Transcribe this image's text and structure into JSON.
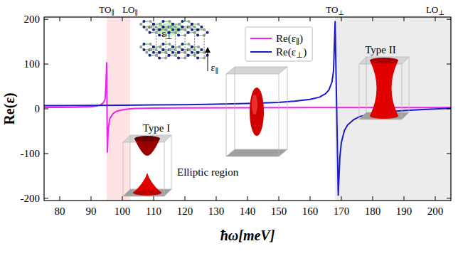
{
  "chart_data": {
    "type": "line",
    "x_label": "ħω[meV]",
    "y_label": "Re(ε)",
    "xlim": [
      75,
      205
    ],
    "ylim": [
      -205,
      205
    ],
    "xticks": [
      80,
      90,
      100,
      110,
      120,
      130,
      140,
      150,
      160,
      170,
      180,
      190,
      200
    ],
    "yticks": [
      -200,
      -100,
      0,
      100,
      200
    ],
    "grid": false,
    "legend": "top",
    "series": [
      {
        "name": "Re(ε∥)",
        "color": "#ee22ee",
        "line_style": "solid",
        "x": [
          75,
          80,
          85,
          90,
          92,
          93,
          94,
          94.5,
          94.8,
          95.0,
          95.2,
          95.5,
          96,
          97,
          98,
          100,
          102,
          104,
          110,
          120,
          140,
          160,
          180,
          205
        ],
        "values": [
          3.0,
          3.2,
          3.6,
          4.8,
          6.5,
          8.5,
          14,
          22,
          60,
          103,
          -97,
          -45,
          -22,
          -11,
          -6,
          -2.5,
          -0.3,
          0.6,
          1.6,
          2.1,
          2.5,
          2.7,
          2.8,
          2.9
        ]
      },
      {
        "name": "Re(ε⊥)",
        "color": "#1a1acc",
        "line_style": "solid",
        "x": [
          75,
          80,
          90,
          100,
          110,
          120,
          130,
          140,
          150,
          155,
          160,
          163,
          165,
          166,
          167,
          167.5,
          168,
          169,
          169.5,
          170,
          171,
          172,
          174,
          176,
          180,
          185,
          190,
          195,
          200,
          205
        ],
        "values": [
          7.2,
          7.3,
          7.6,
          8.0,
          8.6,
          9.3,
          10.3,
          11.8,
          14.5,
          17,
          21,
          26,
          34,
          42,
          60,
          85,
          195,
          -193,
          -110,
          -75,
          -48,
          -36,
          -24,
          -17,
          -11,
          -6.5,
          -3.8,
          -1.8,
          -0.2,
          1.0
        ]
      }
    ],
    "regions": [
      {
        "x0": 95,
        "x1": 102.5,
        "color": "#fde3e3"
      },
      {
        "x0": 168,
        "x1": 205,
        "color": "#ececec"
      }
    ],
    "top_labels": [
      {
        "text": "TO∥",
        "x": 95
      },
      {
        "text": "LO∥",
        "x": 102.5
      },
      {
        "text": "TO⊥",
        "x": 168
      },
      {
        "text": "LO⊥",
        "x": 200
      }
    ],
    "annotations": [
      {
        "text": "Type I",
        "x": 110.9,
        "y": -43
      },
      {
        "text": "Type II",
        "x": 182.5,
        "y": 132
      },
      {
        "text": "Elliptic region",
        "x": 127.3,
        "y": -141
      },
      {
        "text": "ε⊥",
        "x": 114.3,
        "y": 168
      },
      {
        "text": "ε∥",
        "x": 129.5,
        "y": 92
      }
    ]
  }
}
